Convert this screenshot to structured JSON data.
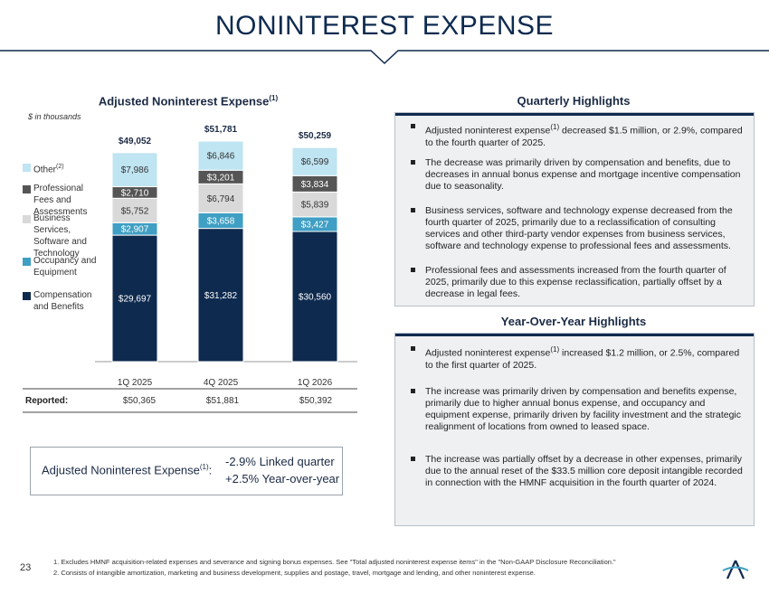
{
  "page": {
    "title": "NONINTEREST EXPENSE",
    "page_number": "23"
  },
  "chart_panel": {
    "title": "Adjusted Noninterest Expense",
    "title_sup": "(1)",
    "units": "$ in thousands"
  },
  "chart_data": {
    "type": "bar",
    "stacked": true,
    "title": "Adjusted Noninterest Expense(1)",
    "categories": [
      "1Q 2025",
      "4Q 2025",
      "1Q 2026"
    ],
    "totals": [
      "$49,052",
      "$51,781",
      "$50,259"
    ],
    "series": [
      {
        "name": "Compensation and Benefits",
        "color": "#0e2a4f",
        "values": [
          29697,
          31282,
          30560
        ],
        "labels": [
          "$29,697",
          "$31,282",
          "$30,560"
        ]
      },
      {
        "name": "Occupancy and Equipment",
        "color": "#3f9fc4",
        "values": [
          2907,
          3658,
          3427
        ],
        "labels": [
          "$2,907",
          "$3,658",
          "$3,427"
        ]
      },
      {
        "name": "Business Services, Software and Technology",
        "color": "#d9d9d9",
        "values": [
          5752,
          6794,
          5839
        ],
        "labels": [
          "$5,752",
          "$6,794",
          "$5,839"
        ]
      },
      {
        "name": "Professional Fees and Assessments",
        "color": "#555555",
        "values": [
          2710,
          3201,
          3834
        ],
        "labels": [
          "$2,710",
          "$3,201",
          "$3,834"
        ]
      },
      {
        "name": "Other(2)",
        "color": "#bfe4f2",
        "values": [
          7986,
          6846,
          6599
        ],
        "labels": [
          "$7,986",
          "$6,846",
          "$6,599"
        ]
      }
    ],
    "reported": {
      "label": "Reported:",
      "values": [
        "$50,365",
        "$51,881",
        "$50,392"
      ]
    },
    "ylim": [
      0,
      52000
    ],
    "grid": false,
    "legend_position": "left"
  },
  "legend": [
    {
      "label": "Other",
      "sup": "(2)"
    },
    {
      "label": "Professional Fees and Assessments",
      "sup": ""
    },
    {
      "label": "Business Services, Software and Technology",
      "sup": ""
    },
    {
      "label": "Occupancy and Equipment",
      "sup": ""
    },
    {
      "label": "Compensation and Benefits",
      "sup": ""
    }
  ],
  "callout": {
    "label": "Adjusted Noninterest Expense",
    "label_sup": "(1)",
    "label_suffix": ":",
    "linked_quarter": "-2.9% Linked quarter",
    "year_over_year": "+2.5% Year-over-year"
  },
  "quarterly_highlights": {
    "title": "Quarterly Highlights",
    "bullets": [
      {
        "pre": "Adjusted noninterest expense",
        "sup": "(1)",
        "post": " decreased $1.5 million, or 2.9%, compared to the fourth quarter of 2025."
      },
      {
        "pre": "The decrease was primarily driven by compensation and benefits, due to decreases in annual bonus expense and mortgage incentive compensation due to seasonality.",
        "sup": "",
        "post": ""
      },
      {
        "pre": "Business services, software and technology expense decreased from the fourth quarter of 2025, primarily due to a reclassification of consulting services and other third-party vendor expenses from business services, software and technology expense to professional fees and assessments.",
        "sup": "",
        "post": ""
      },
      {
        "pre": "Professional fees and assessments increased from the fourth quarter of 2025, primarily due to this expense reclassification, partially offset by a decrease in legal fees.",
        "sup": "",
        "post": ""
      }
    ]
  },
  "yoy_highlights": {
    "title": "Year-Over-Year Highlights",
    "bullets": [
      {
        "pre": "Adjusted noninterest expense",
        "sup": "(1)",
        "post": " increased $1.2 million, or 2.5%, compared to the first quarter of 2025."
      },
      {
        "pre": "The increase was primarily driven by compensation and benefits expense, primarily due to higher annual bonus expense, and occupancy and equipment expense, primarily driven by facility investment and the strategic realignment of locations from owned to leased space.",
        "sup": "",
        "post": ""
      },
      {
        "pre": "The increase was partially offset by a decrease in other expenses, primarily due to the annual reset of the $33.5 million core deposit intangible recorded in connection with the HMNF acquisition in the fourth quarter of 2024.",
        "sup": "",
        "post": ""
      }
    ]
  },
  "footnotes": [
    "1. Excludes HMNF acquisition-related expenses and severance and signing bonus expenses. See \"Total adjusted noninterest expense items\" in the \"Non-GAAP Disclosure Reconciliation.\"",
    "2. Consists of intangible amortization, marketing and business development, supplies and postage, travel, mortgage and lending, and other noninterest expense."
  ],
  "colors": {
    "navy": "#0e2a4f",
    "teal": "#3f9fc4",
    "panel_bg": "#eef0f2"
  }
}
